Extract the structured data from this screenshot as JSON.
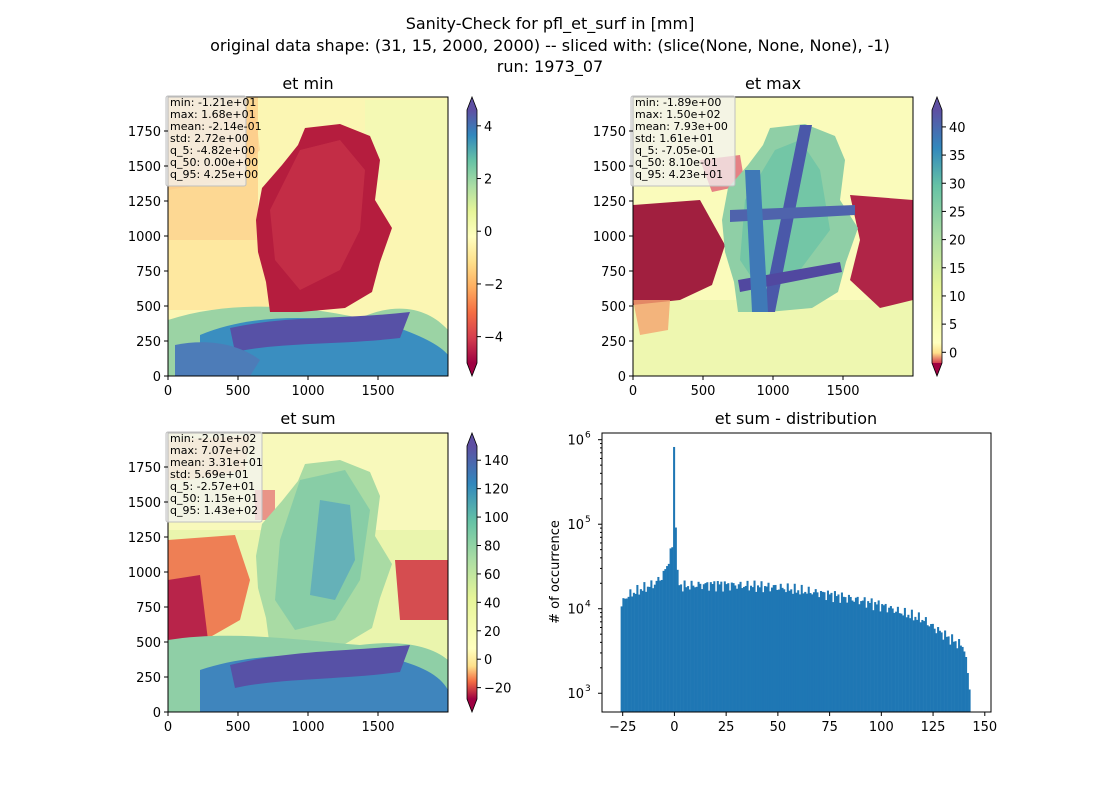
{
  "figure": {
    "title_lines": [
      "Sanity-Check for pfl_et_surf in [mm]",
      "original data shape: (31, 15, 2000, 2000) -- sliced with: (slice(None, None, None), -1)",
      "run: 1973_07"
    ]
  },
  "maps": [
    {
      "title": "et min",
      "x_ticks": [
        "0",
        "500",
        "1000",
        "1500"
      ],
      "y_ticks": [
        "0",
        "250",
        "500",
        "750",
        "1000",
        "1250",
        "1500",
        "1750"
      ],
      "colorbar": {
        "min": -5,
        "max": 4.6,
        "ticks": [
          "4",
          "2",
          "0",
          "−2",
          "−4"
        ],
        "tick_values": [
          4,
          2,
          0,
          -2,
          -4
        ],
        "cmap": "Spectral"
      },
      "stats": [
        "min: -1.21e+01",
        "max: 1.68e+01",
        "mean: -2.14e-01",
        "std: 2.72e+00",
        "q_5: -4.82e+00",
        "q_50: 0.00e+00",
        "q_95: 4.25e+00"
      ]
    },
    {
      "title": "et max",
      "x_ticks": [
        "0",
        "500",
        "1000",
        "1500"
      ],
      "y_ticks": [
        "0",
        "250",
        "500",
        "750",
        "1000",
        "1250",
        "1500",
        "1750"
      ],
      "colorbar": {
        "min": -1.9,
        "max": 43,
        "ticks": [
          "40",
          "35",
          "30",
          "25",
          "20",
          "15",
          "10",
          "5",
          "0"
        ],
        "tick_values": [
          40,
          35,
          30,
          25,
          20,
          15,
          10,
          5,
          0
        ],
        "cmap": "Spectral"
      },
      "stats": [
        "min: -1.89e+00",
        "max: 1.50e+02",
        "mean: 7.93e+00",
        "std: 1.61e+01",
        "q_5: -7.05e-01",
        "q_50: 8.10e-01",
        "q_95: 4.23e+01"
      ]
    },
    {
      "title": "et sum",
      "x_ticks": [
        "0",
        "500",
        "1000",
        "1500"
      ],
      "y_ticks": [
        "0",
        "250",
        "500",
        "750",
        "1000",
        "1250",
        "1500",
        "1750"
      ],
      "colorbar": {
        "min": -28,
        "max": 150,
        "ticks": [
          "140",
          "120",
          "100",
          "80",
          "60",
          "40",
          "20",
          "0",
          "−20"
        ],
        "tick_values": [
          140,
          120,
          100,
          80,
          60,
          40,
          20,
          0,
          -20
        ],
        "cmap": "Spectral"
      },
      "stats": [
        "min: -2.01e+02",
        "max: 7.07e+02",
        "mean: 3.31e+01",
        "std: 5.69e+01",
        "q_5: -2.57e+01",
        "q_50: 1.15e+01",
        "q_95: 1.43e+02"
      ]
    }
  ],
  "chart_data": {
    "type": "bar",
    "title": "et sum - distribution",
    "xlabel": "",
    "ylabel": "# of occurrence",
    "y_scale": "log",
    "xlim": [
      -35,
      153
    ],
    "ylim": [
      600,
      1200000
    ],
    "x_ticks": [
      "−25",
      "0",
      "25",
      "50",
      "75",
      "100",
      "125",
      "150"
    ],
    "x_tick_values": [
      -25,
      0,
      25,
      50,
      75,
      100,
      125,
      150
    ],
    "y_ticks": [
      "10",
      "10",
      "10",
      "10"
    ],
    "y_tick_exponents": [
      "3",
      "4",
      "5",
      "6"
    ],
    "y_tick_values": [
      1000,
      10000,
      100000,
      1000000
    ],
    "color": "#1f77b4",
    "bin_range": [
      -26,
      143
    ],
    "bin_count": 200,
    "profile_x": [
      -26,
      -24,
      -20,
      -15,
      -10,
      -6,
      -4,
      -2,
      -1,
      0,
      1,
      2,
      4,
      10,
      20,
      30,
      40,
      50,
      60,
      70,
      80,
      90,
      100,
      110,
      120,
      130,
      140,
      143
    ],
    "profile_y": [
      10000,
      13500,
      15500,
      17500,
      19500,
      24000,
      30000,
      45000,
      55000,
      820000,
      30000,
      20000,
      18500,
      19000,
      19500,
      19000,
      18500,
      18000,
      16500,
      15500,
      14000,
      12500,
      11000,
      9000,
      7500,
      5000,
      3500,
      1000
    ]
  }
}
